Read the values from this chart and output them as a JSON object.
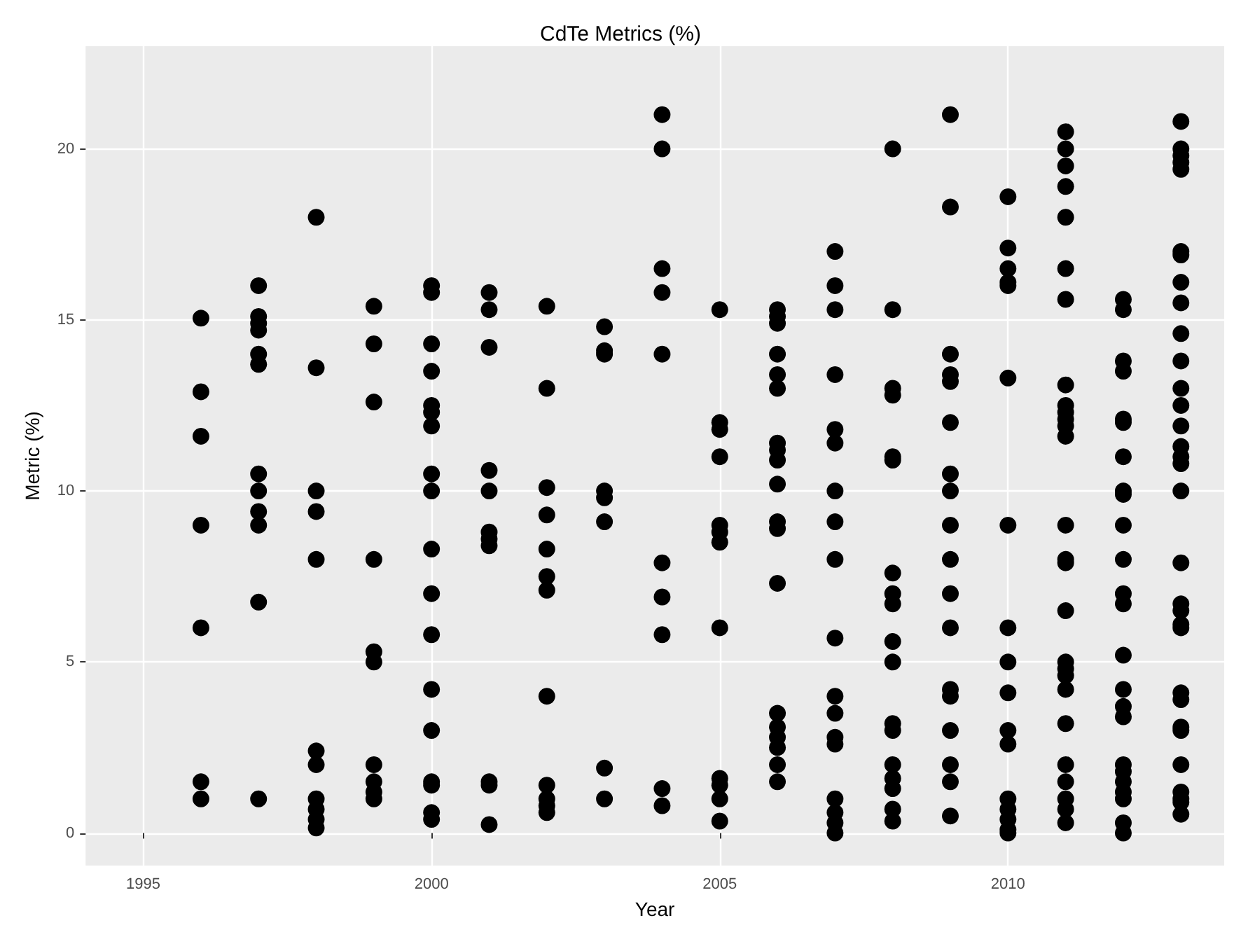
{
  "chart_data": {
    "type": "scatter",
    "title": "CdTe Metrics (%)",
    "xlabel": "Year",
    "ylabel": "Metric (%)",
    "xlim": [
      1994,
      2013.75
    ],
    "xticks": [
      1995,
      2000,
      2005,
      2010
    ],
    "ylim": [
      -0.95,
      23
    ],
    "yticks": [
      0,
      5,
      10,
      15,
      20
    ],
    "grid": true,
    "marker": "circle",
    "series": [
      {
        "color": "#000000",
        "x": [
          1996,
          1996,
          1996,
          1996,
          1996,
          1996,
          1996,
          1997,
          1997,
          1997,
          1997,
          1997,
          1997,
          1997,
          1997,
          1997,
          1997,
          1997,
          1997,
          1998,
          1998,
          1998,
          1998,
          1998,
          1998,
          1998,
          1998,
          1998,
          1998,
          1998,
          1999,
          1999,
          1999,
          1999,
          1999,
          1999,
          1999,
          1999,
          1999,
          1999,
          2000,
          2000,
          2000,
          2000,
          2000,
          2000,
          2000,
          2000,
          2000,
          2000,
          2000,
          2000,
          2000,
          2000,
          2000,
          2000,
          2000,
          2000,
          2001,
          2001,
          2001,
          2001,
          2001,
          2001,
          2001,
          2001,
          2001,
          2001,
          2001,
          2002,
          2002,
          2002,
          2002,
          2002,
          2002,
          2002,
          2002,
          2002,
          2002,
          2002,
          2002,
          2003,
          2003,
          2003,
          2003,
          2003,
          2003,
          2003,
          2003,
          2004,
          2004,
          2004,
          2004,
          2004,
          2004,
          2004,
          2004,
          2004,
          2004,
          2005,
          2005,
          2005,
          2005,
          2005,
          2005,
          2005,
          2005,
          2005,
          2005,
          2005,
          2005,
          2006,
          2006,
          2006,
          2006,
          2006,
          2006,
          2006,
          2006,
          2006,
          2006,
          2006,
          2006,
          2006,
          2006,
          2006,
          2006,
          2006,
          2006,
          2006,
          2007,
          2007,
          2007,
          2007,
          2007,
          2007,
          2007,
          2007,
          2007,
          2007,
          2007,
          2007,
          2007,
          2007,
          2007,
          2007,
          2007,
          2007,
          2008,
          2008,
          2008,
          2008,
          2008,
          2008,
          2008,
          2008,
          2008,
          2008,
          2008,
          2008,
          2008,
          2008,
          2008,
          2008,
          2008,
          2008,
          2009,
          2009,
          2009,
          2009,
          2009,
          2009,
          2009,
          2009,
          2009,
          2009,
          2009,
          2009,
          2009,
          2009,
          2009,
          2009,
          2009,
          2009,
          2010,
          2010,
          2010,
          2010,
          2010,
          2010,
          2010,
          2010,
          2010,
          2010,
          2010,
          2010,
          2010,
          2010,
          2010,
          2010,
          2010,
          2011,
          2011,
          2011,
          2011,
          2011,
          2011,
          2011,
          2011,
          2011,
          2011,
          2011,
          2011,
          2011,
          2011,
          2011,
          2011,
          2011,
          2011,
          2011,
          2011,
          2011,
          2011,
          2011,
          2011,
          2011,
          2011,
          2011,
          2012,
          2012,
          2012,
          2012,
          2012,
          2012,
          2012,
          2012,
          2012,
          2012,
          2012,
          2012,
          2012,
          2012,
          2012,
          2012,
          2012,
          2012,
          2012,
          2012,
          2012,
          2012,
          2012,
          2012,
          2013,
          2013,
          2013,
          2013,
          2013,
          2013,
          2013,
          2013,
          2013,
          2013,
          2013,
          2013,
          2013,
          2013,
          2013,
          2013,
          2013,
          2013,
          2013,
          2013,
          2013,
          2013,
          2013,
          2013,
          2013,
          2013,
          2013,
          2013,
          2013,
          2013,
          2013,
          2013
        ],
        "values": [
          15.05,
          12.9,
          11.6,
          9.0,
          6.0,
          1.5,
          1.0,
          16.0,
          15.1,
          14.9,
          14.7,
          14.0,
          13.7,
          10.5,
          10.0,
          9.4,
          9.0,
          6.75,
          1.0,
          18.0,
          13.6,
          10.0,
          9.4,
          8.0,
          2.4,
          2.0,
          1.0,
          0.7,
          0.4,
          0.15,
          15.4,
          14.3,
          12.6,
          8.0,
          5.3,
          5.0,
          2.0,
          1.5,
          1.2,
          1.0,
          16.0,
          15.8,
          14.3,
          13.5,
          12.5,
          12.3,
          11.9,
          10.5,
          10.0,
          8.3,
          7.0,
          5.8,
          4.2,
          3.0,
          1.5,
          1.4,
          0.6,
          0.4,
          15.8,
          15.3,
          14.2,
          10.6,
          10.0,
          8.8,
          8.6,
          8.4,
          1.5,
          1.4,
          0.25,
          15.4,
          13.0,
          10.1,
          9.3,
          8.3,
          7.5,
          7.1,
          4.0,
          1.4,
          1.0,
          0.8,
          0.6,
          14.8,
          14.1,
          14.0,
          10.0,
          9.8,
          9.1,
          1.9,
          1.0,
          21.0,
          20.0,
          16.5,
          15.8,
          14.0,
          7.9,
          6.9,
          5.8,
          1.3,
          0.8,
          15.3,
          12.0,
          11.8,
          11.0,
          9.0,
          8.8,
          8.5,
          6.0,
          1.6,
          1.4,
          1.0,
          0.35,
          15.3,
          15.1,
          14.9,
          14.0,
          13.4,
          13.0,
          11.4,
          11.2,
          10.9,
          10.2,
          9.1,
          8.9,
          7.3,
          3.5,
          3.1,
          2.8,
          2.5,
          2.0,
          1.5,
          17.0,
          16.0,
          15.3,
          13.4,
          11.8,
          11.4,
          10.0,
          9.1,
          8.0,
          5.7,
          4.0,
          3.5,
          2.8,
          2.6,
          1.0,
          0.6,
          0.3,
          0.0,
          20.0,
          15.3,
          13.0,
          12.8,
          11.0,
          10.9,
          7.6,
          7.0,
          6.7,
          5.6,
          5.0,
          3.2,
          3.0,
          2.0,
          1.6,
          1.3,
          0.7,
          0.35,
          21.0,
          18.3,
          14.0,
          13.4,
          13.2,
          12.0,
          10.5,
          10.0,
          9.0,
          8.0,
          7.0,
          6.0,
          4.2,
          4.0,
          3.0,
          2.0,
          1.5,
          0.5,
          18.6,
          17.1,
          16.5,
          16.1,
          16.0,
          13.3,
          9.0,
          6.0,
          5.0,
          4.1,
          3.0,
          2.6,
          1.0,
          0.7,
          0.4,
          0.1,
          0.0,
          20.5,
          20.0,
          19.5,
          18.9,
          18.0,
          16.5,
          15.6,
          13.1,
          12.5,
          12.3,
          12.1,
          11.9,
          11.6,
          9.0,
          8.0,
          7.9,
          6.5,
          5.0,
          4.8,
          4.6,
          4.2,
          3.2,
          2.0,
          1.5,
          1.0,
          0.7,
          0.3,
          15.6,
          15.3,
          13.8,
          13.5,
          12.1,
          12.0,
          11.0,
          10.0,
          9.9,
          9.0,
          8.0,
          7.0,
          6.7,
          5.2,
          4.2,
          3.7,
          3.4,
          2.0,
          1.8,
          1.5,
          1.2,
          1.0,
          0.3,
          0.0,
          20.8,
          20.0,
          19.8,
          19.6,
          19.4,
          17.0,
          16.9,
          16.1,
          15.5,
          14.6,
          13.8,
          13.0,
          12.5,
          11.9,
          11.3,
          11.0,
          10.8,
          10.0,
          7.9,
          6.7,
          6.5,
          6.1,
          6.0,
          4.1,
          3.9,
          3.1,
          3.0,
          2.0,
          1.2,
          1.0,
          0.9,
          0.55
        ]
      }
    ]
  }
}
